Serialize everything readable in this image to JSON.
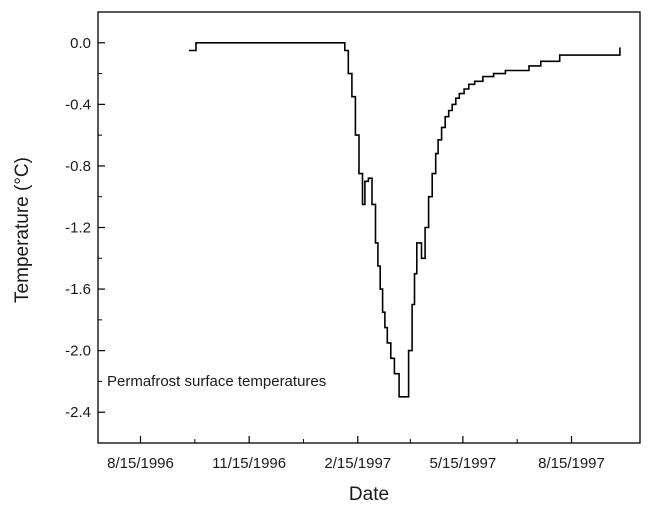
{
  "chart_data": {
    "type": "line",
    "title": "",
    "xlabel": "Date",
    "ylabel": "Temperature (°C)",
    "annotation": "Permafrost surface temperatures",
    "x_ticks": [
      "8/15/1996",
      "11/15/1996",
      "2/15/1997",
      "5/15/1997",
      "8/15/1997"
    ],
    "x_tick_dates": [
      "1996-08-15",
      "1996-11-15",
      "1997-02-15",
      "1997-05-15",
      "1997-08-15"
    ],
    "xlim": [
      "1996-07-10",
      "1997-10-12"
    ],
    "y_ticks": [
      "0.0",
      "-0.4",
      "-0.8",
      "-1.2",
      "-1.6",
      "-2.0",
      "-2.4"
    ],
    "y_tick_values": [
      0.0,
      -0.4,
      -0.8,
      -1.2,
      -1.6,
      -2.0,
      -2.4
    ],
    "ylim": [
      -2.6,
      0.2
    ],
    "grid": false,
    "series": [
      {
        "color": "#000000",
        "x": [
          "1996-09-25",
          "1996-10-01",
          "1997-02-01",
          "1997-02-04",
          "1997-02-07",
          "1997-02-10",
          "1997-02-13",
          "1997-02-16",
          "1997-02-19",
          "1997-02-21",
          "1997-02-24",
          "1997-02-27",
          "1997-03-02",
          "1997-03-04",
          "1997-03-06",
          "1997-03-08",
          "1997-03-10",
          "1997-03-12",
          "1997-03-15",
          "1997-03-18",
          "1997-03-22",
          "1997-03-26",
          "1997-03-30",
          "1997-04-02",
          "1997-04-04",
          "1997-04-06",
          "1997-04-08",
          "1997-04-10",
          "1997-04-13",
          "1997-04-16",
          "1997-04-19",
          "1997-04-22",
          "1997-04-24",
          "1997-04-27",
          "1997-04-30",
          "1997-05-03",
          "1997-05-06",
          "1997-05-09",
          "1997-05-12",
          "1997-05-16",
          "1997-05-20",
          "1997-05-25",
          "1997-06-01",
          "1997-06-10",
          "1997-06-20",
          "1997-07-10",
          "1997-07-20",
          "1997-08-05",
          "1997-09-20",
          "1997-09-25"
        ],
        "values": [
          -0.05,
          0.0,
          0.0,
          -0.05,
          -0.2,
          -0.35,
          -0.6,
          -0.85,
          -1.05,
          -0.9,
          -0.88,
          -1.05,
          -1.3,
          -1.45,
          -1.6,
          -1.75,
          -1.85,
          -1.95,
          -2.05,
          -2.15,
          -2.3,
          -2.3,
          -2.0,
          -1.7,
          -1.5,
          -1.3,
          -1.3,
          -1.4,
          -1.2,
          -1.0,
          -0.85,
          -0.72,
          -0.63,
          -0.55,
          -0.48,
          -0.44,
          -0.4,
          -0.36,
          -0.33,
          -0.3,
          -0.27,
          -0.25,
          -0.22,
          -0.2,
          -0.18,
          -0.15,
          -0.12,
          -0.08,
          -0.08,
          -0.03
        ]
      }
    ]
  }
}
